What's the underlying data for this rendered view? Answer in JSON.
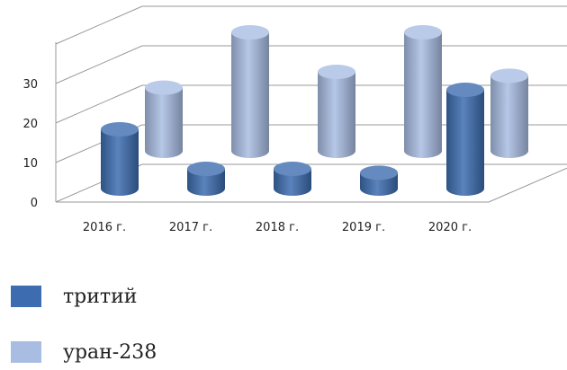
{
  "chart_data": {
    "type": "bar",
    "style": "3d-cylinder",
    "categories": [
      "2016 г.",
      "2017 г.",
      "2018 г.",
      "2019 г.",
      "2020 г."
    ],
    "series": [
      {
        "name": "тритий",
        "color": "#3d6db0",
        "values": [
          15,
          5,
          5,
          4,
          25
        ]
      },
      {
        "name": "уран-238",
        "color": "#a9bde3",
        "values": [
          16,
          30,
          20,
          30,
          19
        ]
      }
    ],
    "ylim": [
      0,
      45
    ],
    "yticks": [
      "0",
      "10",
      "20",
      "30"
    ],
    "grid": true,
    "legend_position": "bottom-left"
  }
}
